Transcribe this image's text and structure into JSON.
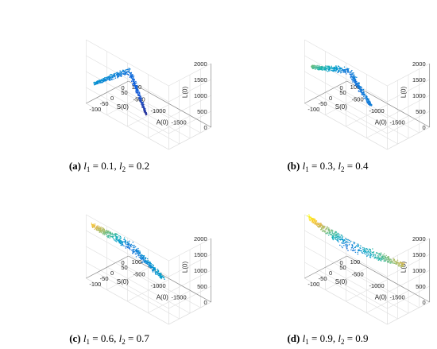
{
  "chart_data": [
    {
      "type": "scatter3d",
      "panel_label": "(a)",
      "l1": "0.1",
      "l2": "0.2",
      "xlabel": "A(0)",
      "ylabel": "S(0)",
      "zlabel": "L(0)",
      "x_ticks": [
        "-1500",
        "-1000",
        "-500",
        "0"
      ],
      "y_ticks": [
        "-100",
        "-50",
        "0",
        "50",
        "100"
      ],
      "z_ticks": [
        "0",
        "500",
        "1000",
        "1500",
        "2000"
      ],
      "xlim": [
        -2000,
        0
      ],
      "ylim": [
        -100,
        100
      ],
      "zlim": [
        0,
        2000
      ],
      "grid": true,
      "colormap": "parula",
      "arms": [
        {
          "A": [
            -60,
            -1000
          ],
          "S": [
            95,
            -10
          ],
          "L": [
            350,
            50
          ],
          "spread": 0.1
        },
        {
          "A": [
            -60,
            -80
          ],
          "S": [
            95,
            -80
          ],
          "L": [
            400,
            600
          ],
          "spread": 0.12
        }
      ]
    },
    {
      "type": "scatter3d",
      "panel_label": "(b)",
      "l1": "0.3",
      "l2": "0.4",
      "xlabel": "A(0)",
      "ylabel": "S(0)",
      "zlabel": "L(0)",
      "x_ticks": [
        "-1500",
        "-1000",
        "-500",
        "0"
      ],
      "y_ticks": [
        "-100",
        "-50",
        "0",
        "50",
        "100"
      ],
      "z_ticks": [
        "0",
        "500",
        "1000",
        "1500",
        "2000"
      ],
      "xlim": [
        -2000,
        0
      ],
      "ylim": [
        -100,
        100
      ],
      "zlim": [
        0,
        2000
      ],
      "grid": true,
      "colormap": "parula",
      "arms": [
        {
          "A": [
            -60,
            -1150
          ],
          "S": [
            95,
            -10
          ],
          "L": [
            400,
            450
          ],
          "spread": 0.14
        },
        {
          "A": [
            -60,
            -80
          ],
          "S": [
            95,
            -85
          ],
          "L": [
            400,
            1150
          ],
          "spread": 0.14
        }
      ]
    },
    {
      "type": "scatter3d",
      "panel_label": "(c)",
      "l1": "0.6",
      "l2": "0.7",
      "xlabel": "A(0)",
      "ylabel": "S(0)",
      "zlabel": "L(0)",
      "x_ticks": [
        "-1500",
        "-1000",
        "-500",
        "0"
      ],
      "y_ticks": [
        "-100",
        "-50",
        "0",
        "50",
        "100"
      ],
      "z_ticks": [
        "0",
        "500",
        "1000",
        "1500",
        "2000"
      ],
      "xlim": [
        -2000,
        0
      ],
      "ylim": [
        -100,
        100
      ],
      "zlim": [
        0,
        2000
      ],
      "grid": true,
      "colormap": "parula",
      "arms": [
        {
          "A": [
            -60,
            -1400
          ],
          "S": [
            95,
            -10
          ],
          "L": [
            400,
            700
          ],
          "spread": 0.17
        },
        {
          "A": [
            -60,
            -80
          ],
          "S": [
            95,
            -90
          ],
          "L": [
            400,
            1700
          ],
          "spread": 0.17
        }
      ]
    },
    {
      "type": "scatter3d",
      "panel_label": "(d)",
      "l1": "0.9",
      "l2": "0.9",
      "xlabel": "A(0)",
      "ylabel": "S(0)",
      "zlabel": "L(0)",
      "x_ticks": [
        "-1500",
        "-1000",
        "-500",
        "0"
      ],
      "y_ticks": [
        "-100",
        "-50",
        "0",
        "50",
        "100"
      ],
      "z_ticks": [
        "0",
        "500",
        "1000",
        "1500",
        "2000"
      ],
      "xlim": [
        -2000,
        0
      ],
      "ylim": [
        -100,
        100
      ],
      "zlim": [
        0,
        2000
      ],
      "grid": true,
      "colormap": "parula",
      "arms": [
        {
          "A": [
            -60,
            -1950
          ],
          "S": [
            95,
            -10
          ],
          "L": [
            400,
            1500
          ],
          "spread": 0.2
        },
        {
          "A": [
            -60,
            -80
          ],
          "S": [
            95,
            -95
          ],
          "L": [
            400,
            1950
          ],
          "spread": 0.2
        }
      ]
    }
  ],
  "captions": [
    {
      "label": "(a)",
      "l1": "0.1",
      "l2": "0.2"
    },
    {
      "label": "(b)",
      "l1": "0.3",
      "l2": "0.4"
    },
    {
      "label": "(c)",
      "l1": "0.6",
      "l2": "0.7"
    },
    {
      "label": "(d)",
      "l1": "0.9",
      "l2": "0.9"
    }
  ]
}
